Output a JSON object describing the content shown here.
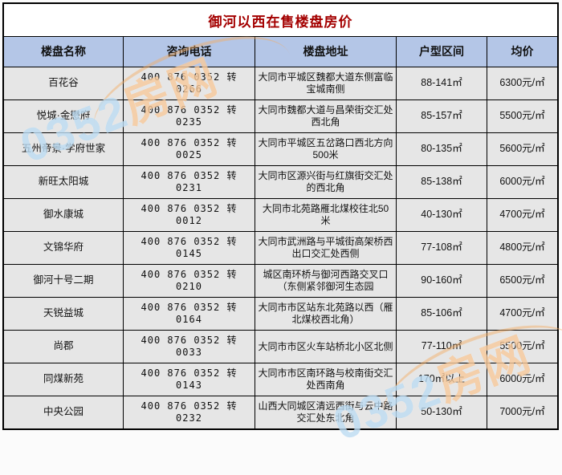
{
  "chart_data": {
    "type": "table",
    "title": "御河以西在售楼盘房价",
    "columns": [
      "楼盘名称",
      "咨询电话",
      "楼盘地址",
      "户型区间",
      "均价"
    ],
    "rows": [
      {
        "name": "百花谷",
        "phone": "400 876 0352 转 0266",
        "address": "大同市平城区魏都大道东侧富临宝城南侧",
        "range": "88-141㎡",
        "price": "6300元/㎡"
      },
      {
        "name": "悦城·金懋府",
        "phone": "400 876 0352 转 0235",
        "address": "大同市魏都大道与昌荣街交汇处西北角",
        "range": "85-157㎡",
        "price": "5500元/㎡"
      },
      {
        "name": "五州帝景·学府世家",
        "phone": "400 876 0352 转 0025",
        "address": "大同市平城区五岔路口西北方向500米",
        "range": "80-135㎡",
        "price": "5600元/㎡"
      },
      {
        "name": "新旺太阳城",
        "phone": "400 876 0352 转 0231",
        "address": "大同市区源兴街与红旗街交汇处的西北角",
        "range": "85-138㎡",
        "price": "6000元/㎡"
      },
      {
        "name": "御水康城",
        "phone": "400 876 0352 转 0012",
        "address": "大同市北苑路雁北煤校往北50米",
        "range": "40-130㎡",
        "price": "4700元/㎡"
      },
      {
        "name": "文锦华府",
        "phone": "400 876 0352 转 0145",
        "address": "大同市武洲路与平城街高架桥西出口交汇处西侧",
        "range": "77-108㎡",
        "price": "4800元/㎡"
      },
      {
        "name": "御河十号二期",
        "phone": "400 876 0352 转 0210",
        "address": "城区南环桥与御河西路交叉口（东侧紧邻御河生态园",
        "range": "90-160㎡",
        "price": "6500元/㎡"
      },
      {
        "name": "天锐益城",
        "phone": "400 876 0352 转 0164",
        "address": "大同市市区站东北苑路以西（雁北煤校西北角）",
        "range": "85-106㎡",
        "price": "4700元/㎡"
      },
      {
        "name": "尚郡",
        "phone": "400 876 0352 转 0033",
        "address": "大同市市区火车站桥北小区北侧",
        "range": "77-110㎡",
        "price": "5500元/㎡"
      },
      {
        "name": "同煤新苑",
        "phone": "400 876 0352 转 0143",
        "address": "大同市市区南环路与校南街交汇处西南角",
        "range": "170㎡以上",
        "price": "6000元/㎡"
      },
      {
        "name": "中央公园",
        "phone": "400 876 0352 转 0232",
        "address": "山西大同城区清远西街与云中路交汇处东北角",
        "range": "50-130㎡",
        "price": "7000元/㎡"
      }
    ]
  },
  "watermark": {
    "numeric_part": "0352",
    "cjk_part": "房网"
  },
  "colors": {
    "header_bg": "#b4c6e7",
    "row_bg": "#e6e6e6",
    "title_color": "#a40000",
    "border": "#000000",
    "watermark_blue": "#96c8eb",
    "watermark_orange": "#f3aa5f"
  }
}
